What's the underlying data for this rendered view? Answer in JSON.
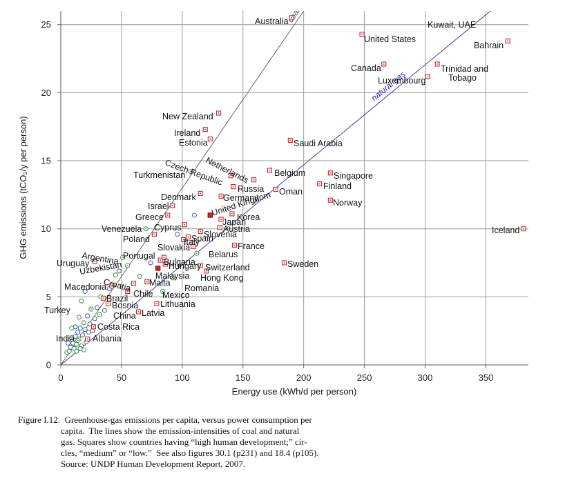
{
  "chart_data": {
    "type": "scatter",
    "xlabel": "Energy use (kWh/d per person)",
    "ylabel": "GHG emissions (tCO₂/y per person)",
    "xlim": [
      0,
      385
    ],
    "ylim": [
      0,
      26
    ],
    "xticks": [
      0,
      50,
      100,
      150,
      200,
      250,
      300,
      350
    ],
    "yticks": [
      0,
      5,
      10,
      15,
      20,
      25
    ],
    "grid": true,
    "lines": [
      {
        "name": "coal",
        "slope": 0.13,
        "color": "#555555"
      },
      {
        "name": "natural gas",
        "slope": 0.0735,
        "color": "#2a2aa0"
      }
    ],
    "countries": [
      {
        "name": "Australia",
        "x": 190,
        "y": 25.5,
        "marker": "square"
      },
      {
        "name": "United States",
        "x": 248,
        "y": 24.3,
        "marker": "square"
      },
      {
        "name": "Kuwait, UAE",
        "x": 0,
        "y": 0,
        "marker": "none"
      },
      {
        "name": "Bahrain",
        "x": 368,
        "y": 23.8,
        "marker": "square"
      },
      {
        "name": "Canada",
        "x": 266,
        "y": 22.1,
        "marker": "square"
      },
      {
        "name": "Trinidad and",
        "x": 310,
        "y": 22.1,
        "marker": "square"
      },
      {
        "name": "Tobago",
        "x": 0,
        "y": 0,
        "marker": "none"
      },
      {
        "name": "Luxembourg",
        "x": 302,
        "y": 21.2,
        "marker": "square"
      },
      {
        "name": "New Zealand",
        "x": 130,
        "y": 18.5,
        "marker": "square"
      },
      {
        "name": "Ireland",
        "x": 119,
        "y": 17.3,
        "marker": "square"
      },
      {
        "name": "Estonia",
        "x": 123,
        "y": 16.6,
        "marker": "square"
      },
      {
        "name": "Saudi Arabia",
        "x": 189,
        "y": 16.5,
        "marker": "square"
      },
      {
        "name": "Netherlands",
        "x": 159,
        "y": 13.6,
        "marker": "square"
      },
      {
        "name": "Czech Republic",
        "x": 140,
        "y": 13.9,
        "marker": "square"
      },
      {
        "name": "Turkmenistan",
        "x": 107,
        "y": 14.2,
        "marker": "circle"
      },
      {
        "name": "Belgium",
        "x": 172,
        "y": 14.3,
        "marker": "square"
      },
      {
        "name": "Singapore",
        "x": 222,
        "y": 14.1,
        "marker": "square"
      },
      {
        "name": "Finland",
        "x": 213,
        "y": 13.3,
        "marker": "square"
      },
      {
        "name": "Russia",
        "x": 142,
        "y": 13.1,
        "marker": "square"
      },
      {
        "name": "Oman",
        "x": 177,
        "y": 12.9,
        "marker": "square"
      },
      {
        "name": "Denmark",
        "x": 115,
        "y": 12.6,
        "marker": "square"
      },
      {
        "name": "Germany",
        "x": 132,
        "y": 12.4,
        "marker": "square"
      },
      {
        "name": "Norway",
        "x": 222,
        "y": 12.1,
        "marker": "square"
      },
      {
        "name": "Israel",
        "x": 92,
        "y": 11.7,
        "marker": "square"
      },
      {
        "name": "United Kingdom",
        "x": 123,
        "y": 11.0,
        "marker": "filled-square"
      },
      {
        "name": "Greece",
        "x": 88,
        "y": 11.0,
        "marker": "square"
      },
      {
        "name": "Korea",
        "x": 141,
        "y": 11.1,
        "marker": "square"
      },
      {
        "name": "Japan",
        "x": 132,
        "y": 10.7,
        "marker": "square"
      },
      {
        "name": "Cyprus",
        "x": 102,
        "y": 10.3,
        "marker": "square"
      },
      {
        "name": "Austria",
        "x": 131,
        "y": 10.1,
        "marker": "square"
      },
      {
        "name": "Iceland",
        "x": 381,
        "y": 10.0,
        "marker": "square"
      },
      {
        "name": "Venezuela",
        "x": 70,
        "y": 10.0,
        "marker": "circle"
      },
      {
        "name": "Slovenia",
        "x": 115,
        "y": 9.8,
        "marker": "square"
      },
      {
        "name": "Poland",
        "x": 77,
        "y": 9.6,
        "marker": "square"
      },
      {
        "name": "Spain",
        "x": 105,
        "y": 9.4,
        "marker": "square"
      },
      {
        "name": "Italy",
        "x": 101,
        "y": 9.2,
        "marker": "square"
      },
      {
        "name": "France",
        "x": 143,
        "y": 8.8,
        "marker": "square"
      },
      {
        "name": "Slovakia",
        "x": 109,
        "y": 8.7,
        "marker": "square"
      },
      {
        "name": "Belarus",
        "x": 112,
        "y": 8.2,
        "marker": "circle"
      },
      {
        "name": "Argentina",
        "x": 51,
        "y": 7.9,
        "marker": "circle"
      },
      {
        "name": "Portugal",
        "x": 85,
        "y": 7.9,
        "marker": "square"
      },
      {
        "name": "Bulgaria",
        "x": 82,
        "y": 7.7,
        "marker": "square"
      },
      {
        "name": "Uruguay",
        "x": 28,
        "y": 7.6,
        "marker": "square"
      },
      {
        "name": "Sweden",
        "x": 184,
        "y": 7.5,
        "marker": "square"
      },
      {
        "name": "Hungary",
        "x": 86,
        "y": 7.4,
        "marker": "square"
      },
      {
        "name": "Switzerland",
        "x": 115,
        "y": 7.3,
        "marker": "square"
      },
      {
        "name": "Uzbekistan",
        "x": 55,
        "y": 7.3,
        "marker": "circle"
      },
      {
        "name": "Malaysia",
        "x": 80,
        "y": 7.1,
        "marker": "filled-square"
      },
      {
        "name": "Hong Kong",
        "x": 120,
        "y": 6.9,
        "marker": "square"
      },
      {
        "name": "Croatia",
        "x": 60,
        "y": 6.0,
        "marker": "square"
      },
      {
        "name": "Malta",
        "x": 71,
        "y": 6.1,
        "marker": "square"
      },
      {
        "name": "Macedonia",
        "x": 42,
        "y": 5.8,
        "marker": "square"
      },
      {
        "name": "Romania",
        "x": 92,
        "y": 6.4,
        "marker": "circle"
      },
      {
        "name": "Chile",
        "x": 55,
        "y": 5.4,
        "marker": "square"
      },
      {
        "name": "Mexico",
        "x": 84,
        "y": 5.4,
        "marker": "circle"
      },
      {
        "name": "Brazil",
        "x": 35,
        "y": 4.9,
        "marker": "square"
      },
      {
        "name": "Lithuania",
        "x": 79,
        "y": 4.5,
        "marker": "square"
      },
      {
        "name": "Bosnia",
        "x": 39,
        "y": 4.5,
        "marker": "square"
      },
      {
        "name": "Turkey",
        "x": 25,
        "y": 4.1,
        "marker": "circle"
      },
      {
        "name": "Latvia",
        "x": 64,
        "y": 3.9,
        "marker": "square"
      },
      {
        "name": "China",
        "x": 32,
        "y": 3.7,
        "marker": "circle"
      },
      {
        "name": "Costa Rica",
        "x": 27,
        "y": 2.8,
        "marker": "square"
      },
      {
        "name": "India",
        "x": 14,
        "y": 1.8,
        "marker": "circle"
      },
      {
        "name": "Albania",
        "x": 22,
        "y": 1.9,
        "marker": "square"
      }
    ],
    "unlabeled_points": [
      {
        "x": 5,
        "y": 0.9,
        "marker": "circle"
      },
      {
        "x": 7,
        "y": 1.0,
        "marker": "circle"
      },
      {
        "x": 8,
        "y": 1.3,
        "marker": "circle"
      },
      {
        "x": 10,
        "y": 1.6,
        "marker": "circle"
      },
      {
        "x": 11,
        "y": 1.2,
        "marker": "circle"
      },
      {
        "x": 12,
        "y": 2.1,
        "marker": "circle"
      },
      {
        "x": 13,
        "y": 1.5,
        "marker": "circle"
      },
      {
        "x": 14,
        "y": 2.4,
        "marker": "circle"
      },
      {
        "x": 15,
        "y": 1.9,
        "marker": "circle"
      },
      {
        "x": 16,
        "y": 2.7,
        "marker": "circle"
      },
      {
        "x": 17,
        "y": 1.4,
        "marker": "circle"
      },
      {
        "x": 18,
        "y": 2.2,
        "marker": "circle"
      },
      {
        "x": 19,
        "y": 1.1,
        "marker": "circle"
      },
      {
        "x": 20,
        "y": 2.6,
        "marker": "circle"
      },
      {
        "x": 21,
        "y": 1.7,
        "marker": "circle"
      },
      {
        "x": 9,
        "y": 2.0,
        "marker": "circle"
      },
      {
        "x": 12,
        "y": 2.8,
        "marker": "circle"
      },
      {
        "x": 15,
        "y": 3.5,
        "marker": "circle"
      },
      {
        "x": 19,
        "y": 3.1,
        "marker": "circle"
      },
      {
        "x": 23,
        "y": 2.4,
        "marker": "circle"
      },
      {
        "x": 24,
        "y": 3.0,
        "marker": "circle"
      },
      {
        "x": 26,
        "y": 2.5,
        "marker": "circle"
      },
      {
        "x": 17,
        "y": 4.7,
        "marker": "circle"
      },
      {
        "x": 20,
        "y": 5.4,
        "marker": "circle"
      },
      {
        "x": 28,
        "y": 3.4,
        "marker": "circle"
      },
      {
        "x": 30,
        "y": 4.2,
        "marker": "circle"
      },
      {
        "x": 33,
        "y": 5.0,
        "marker": "circle"
      },
      {
        "x": 36,
        "y": 4.0,
        "marker": "circle"
      },
      {
        "x": 40,
        "y": 5.6,
        "marker": "circle"
      },
      {
        "x": 45,
        "y": 6.6,
        "marker": "circle"
      },
      {
        "x": 48,
        "y": 6.9,
        "marker": "circle"
      },
      {
        "x": 65,
        "y": 6.5,
        "marker": "circle"
      },
      {
        "x": 74,
        "y": 7.5,
        "marker": "circle"
      },
      {
        "x": 96,
        "y": 9.6,
        "marker": "circle"
      },
      {
        "x": 110,
        "y": 11.0,
        "marker": "circle"
      },
      {
        "x": 9,
        "y": 2.7,
        "marker": "circle"
      },
      {
        "x": 6,
        "y": 1.6,
        "marker": "circle"
      },
      {
        "x": 22,
        "y": 3.6,
        "marker": "circle"
      },
      {
        "x": 13,
        "y": 1.0,
        "marker": "circle"
      },
      {
        "x": 16,
        "y": 1.2,
        "marker": "circle"
      }
    ]
  },
  "caption": {
    "lines": [
      "Figure I.12.  Greenhouse-gas emissions per capita, versus power consumption per",
      "capita.  The lines show the emission-intensities of coal and natural",
      "gas. Squares show countries having “high human development;” cir-",
      "cles, “medium” or “low.”  See also figures 30.1 (p231) and 18.4 (p105).",
      "Source: UNDP Human Development Report, 2007."
    ]
  }
}
